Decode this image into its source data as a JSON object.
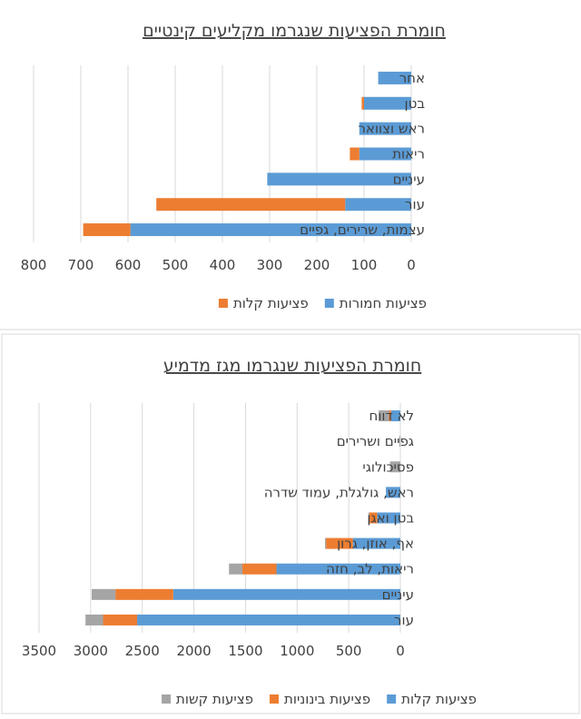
{
  "chart_data": [
    {
      "type": "bar",
      "orientation": "horizontal",
      "stacked": true,
      "title": "חומרת הפציעות שנגרמו מקליעים קינטיים",
      "categories": [
        "אחר",
        "בטן",
        "ראש וצוואר",
        "ריאות",
        "עיניים",
        "עור",
        "עצמות, שרירים, גפיים"
      ],
      "series": [
        {
          "name": "פציעות חמורות",
          "color": "#5B9BD5",
          "values": [
            70,
            100,
            110,
            110,
            305,
            140,
            595
          ]
        },
        {
          "name": "פציעות קלות",
          "color": "#ED7D31",
          "values": [
            0,
            5,
            0,
            20,
            0,
            400,
            100
          ]
        }
      ],
      "xlim": [
        0,
        800
      ],
      "xticks": [
        0,
        100,
        200,
        300,
        400,
        500,
        600,
        700,
        800
      ],
      "x_reversed": true,
      "grid": true,
      "legend_position": "bottom",
      "legend": [
        "פציעות חמורות",
        "פציעות קלות"
      ]
    },
    {
      "type": "bar",
      "orientation": "horizontal",
      "stacked": true,
      "title": "חומרת הפציעות שנגרמו מגז מדמיע",
      "categories": [
        "לא דווח",
        "גפיים ושרירים",
        "פסיכולוגי",
        "ראש, גולגלת, עמוד שדרה",
        "בטן ואגן",
        "אף, אוזן, גרון",
        "ריאות, לב, חזה",
        "עיניים",
        "עור"
      ],
      "series": [
        {
          "name": "פציעות קלות",
          "color": "#5B9BD5",
          "values": [
            90,
            0,
            0,
            140,
            225,
            460,
            1200,
            2200,
            2550
          ]
        },
        {
          "name": "פציעות בינוניות",
          "color": "#ED7D31",
          "values": [
            20,
            0,
            0,
            0,
            75,
            260,
            330,
            560,
            330
          ]
        },
        {
          "name": "פציעות קשות",
          "color": "#A5A5A5",
          "values": [
            100,
            10,
            100,
            0,
            10,
            10,
            130,
            230,
            170
          ]
        }
      ],
      "xlim": [
        0,
        3500
      ],
      "xticks": [
        0,
        500,
        1000,
        1500,
        2000,
        2500,
        3000,
        3500
      ],
      "x_reversed": true,
      "grid": true,
      "legend_position": "bottom",
      "legend": [
        "פציעות קלות",
        "פציעות בינוניות",
        "פציעות קשות"
      ]
    }
  ]
}
